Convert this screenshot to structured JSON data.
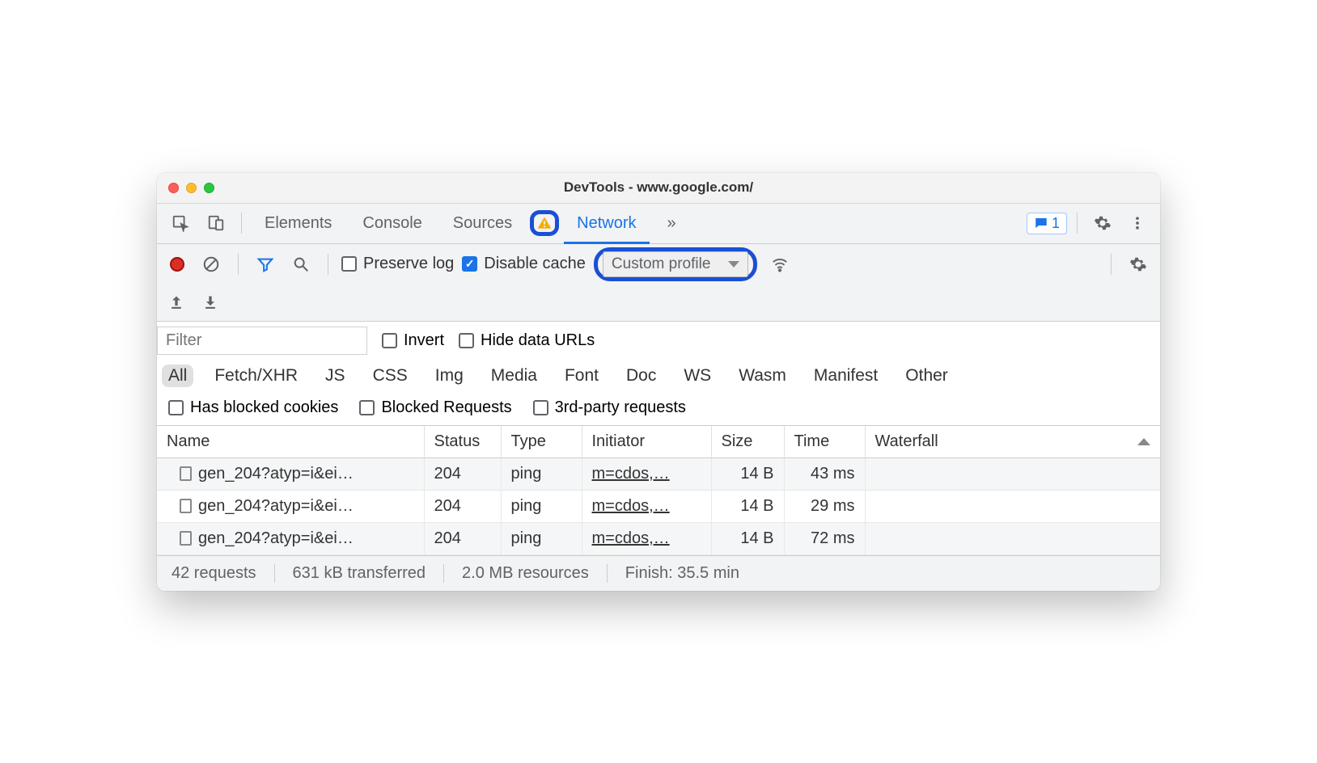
{
  "window": {
    "title": "DevTools - www.google.com/"
  },
  "tabs": {
    "items": [
      "Elements",
      "Console",
      "Sources",
      "Network"
    ],
    "active_index": 3,
    "more": "»",
    "badge_count": "1"
  },
  "toolbar": {
    "preserve_log": {
      "label": "Preserve log",
      "checked": false
    },
    "disable_cache": {
      "label": "Disable cache",
      "checked": true
    },
    "throttle_value": "Custom profile"
  },
  "filter": {
    "placeholder": "Filter",
    "invert": {
      "label": "Invert",
      "checked": false
    },
    "hide_data": {
      "label": "Hide data URLs",
      "checked": false
    }
  },
  "chips": {
    "items": [
      "All",
      "Fetch/XHR",
      "JS",
      "CSS",
      "Img",
      "Media",
      "Font",
      "Doc",
      "WS",
      "Wasm",
      "Manifest",
      "Other"
    ],
    "active_index": 0
  },
  "extra_filters": {
    "blocked_cookies": {
      "label": "Has blocked cookies",
      "checked": false
    },
    "blocked_requests": {
      "label": "Blocked Requests",
      "checked": false
    },
    "third_party": {
      "label": "3rd-party requests",
      "checked": false
    }
  },
  "table": {
    "columns": [
      "Name",
      "Status",
      "Type",
      "Initiator",
      "Size",
      "Time",
      "Waterfall"
    ],
    "rows": [
      {
        "name": "gen_204?atyp=i&ei…",
        "status": "204",
        "type": "ping",
        "initiator": "m=cdos,…",
        "size": "14 B",
        "time": "43 ms"
      },
      {
        "name": "gen_204?atyp=i&ei…",
        "status": "204",
        "type": "ping",
        "initiator": "m=cdos,…",
        "size": "14 B",
        "time": "29 ms"
      },
      {
        "name": "gen_204?atyp=i&ei…",
        "status": "204",
        "type": "ping",
        "initiator": "m=cdos,…",
        "size": "14 B",
        "time": "72 ms"
      }
    ]
  },
  "status": {
    "requests": "42 requests",
    "transferred": "631 kB transferred",
    "resources": "2.0 MB resources",
    "finish": "Finish: 35.5 min"
  },
  "colors": {
    "accent": "#1a73e8",
    "highlight_ring": "#1a4fd6",
    "record": "#d93025",
    "bg_toolbar": "#f1f3f4",
    "border": "#cacdd1"
  }
}
